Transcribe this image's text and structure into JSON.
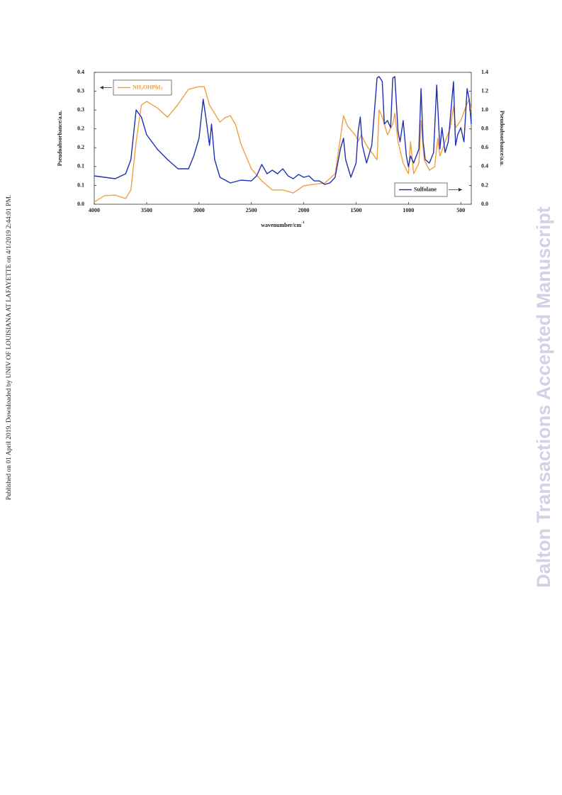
{
  "chart_data": {
    "type": "line",
    "xlabel": "wavenumber/cm-1",
    "ylabel": "Pseudoabsorbance/a.u.",
    "y2label": "Pseudoabsorbance/a.u.",
    "xlim": [
      4000,
      400
    ],
    "xticks": [
      4000,
      3500,
      3000,
      2500,
      2000,
      1500,
      1000,
      500
    ],
    "ylim": [
      0,
      0.35
    ],
    "yticks": [
      {
        "value": 0,
        "label": "0.0"
      },
      {
        "value": 0.05,
        "label": "0.1"
      },
      0.1,
      {
        "value": 0.15,
        "label": "0.2"
      },
      0.2,
      {
        "value": 0.25,
        "label": "0.3"
      },
      0.3,
      {
        "value": 0.35,
        "label": "0.4"
      }
    ],
    "y2lim": [
      0,
      1.4
    ],
    "y2ticks": [
      {
        "value": 0,
        "label": "0.0"
      },
      0.2,
      0.4,
      0.6,
      0.8,
      {
        "value": 1,
        "label": "1.0"
      },
      1.2,
      1.4
    ],
    "series": [
      {
        "name": "NH3OHPbI3",
        "color": "#f0a040",
        "x": [
          4000,
          3900,
          3800,
          3700,
          3650,
          3600,
          3550,
          3500,
          3400,
          3300,
          3200,
          3100,
          3000,
          2950,
          2900,
          2800,
          2750,
          2700,
          2650,
          2600,
          2500,
          2400,
          2300,
          2200,
          2100,
          2000,
          1900,
          1800,
          1700,
          1650,
          1620,
          1580,
          1500,
          1480,
          1450,
          1400,
          1350,
          1300,
          1280,
          1250,
          1200,
          1150,
          1130,
          1100,
          1050,
          1000,
          980,
          950,
          900,
          880,
          850,
          800,
          750,
          720,
          700,
          650,
          600,
          570,
          550,
          500,
          450,
          420,
          400
        ],
        "values": [
          0.006,
          0.023,
          0.024,
          0.015,
          0.038,
          0.166,
          0.263,
          0.273,
          0.256,
          0.231,
          0.265,
          0.305,
          0.312,
          0.312,
          0.263,
          0.218,
          0.23,
          0.235,
          0.211,
          0.16,
          0.094,
          0.062,
          0.038,
          0.038,
          0.03,
          0.049,
          0.053,
          0.056,
          0.081,
          0.175,
          0.235,
          0.207,
          0.181,
          0.166,
          0.184,
          0.156,
          0.137,
          0.118,
          0.25,
          0.231,
          0.184,
          0.213,
          0.241,
          0.166,
          0.109,
          0.081,
          0.166,
          0.081,
          0.109,
          0.222,
          0.118,
          0.09,
          0.1,
          0.175,
          0.128,
          0.166,
          0.203,
          0.26,
          0.203,
          0.222,
          0.26,
          0.279,
          0.25
        ]
      },
      {
        "name": "Sulfolane",
        "color": "#2030b0",
        "axis": "y2",
        "x": [
          4000,
          3900,
          3800,
          3700,
          3650,
          3600,
          3550,
          3500,
          3400,
          3300,
          3200,
          3100,
          3050,
          3000,
          2960,
          2930,
          2900,
          2880,
          2850,
          2800,
          2700,
          2600,
          2500,
          2450,
          2400,
          2350,
          2300,
          2250,
          2200,
          2150,
          2100,
          2050,
          2000,
          1950,
          1900,
          1850,
          1800,
          1750,
          1700,
          1650,
          1620,
          1600,
          1550,
          1500,
          1480,
          1460,
          1440,
          1400,
          1350,
          1300,
          1280,
          1250,
          1230,
          1200,
          1170,
          1150,
          1130,
          1100,
          1080,
          1050,
          1020,
          1000,
          980,
          950,
          900,
          880,
          860,
          840,
          800,
          760,
          730,
          700,
          680,
          650,
          620,
          570,
          550,
          530,
          500,
          470,
          440,
          420,
          400
        ],
        "values": [
          0.301,
          0.286,
          0.271,
          0.324,
          0.474,
          1.001,
          0.926,
          0.738,
          0.587,
          0.474,
          0.376,
          0.376,
          0.512,
          0.7,
          1.114,
          0.888,
          0.625,
          0.851,
          0.474,
          0.286,
          0.226,
          0.256,
          0.248,
          0.301,
          0.422,
          0.324,
          0.361,
          0.324,
          0.376,
          0.301,
          0.271,
          0.316,
          0.286,
          0.301,
          0.248,
          0.248,
          0.211,
          0.226,
          0.286,
          0.587,
          0.7,
          0.474,
          0.286,
          0.437,
          0.775,
          0.926,
          0.625,
          0.437,
          0.625,
          1.34,
          1.355,
          1.302,
          0.851,
          0.888,
          0.813,
          1.34,
          1.355,
          0.775,
          0.662,
          0.888,
          0.512,
          0.399,
          0.512,
          0.437,
          0.587,
          1.227,
          0.662,
          0.474,
          0.437,
          0.549,
          1.265,
          0.587,
          0.813,
          0.549,
          0.662,
          1.302,
          0.625,
          0.738,
          0.813,
          0.662,
          1.227,
          1.114,
          0.851
        ]
      }
    ]
  },
  "sidebar_note": "Published on 01 April 2019. Downloaded by UNIV OF LOUISIANA AT LAFAYETTE on 4/1/2019 2:44:01 PM.",
  "watermark": "Dalton Transactions Accepted Manuscript"
}
